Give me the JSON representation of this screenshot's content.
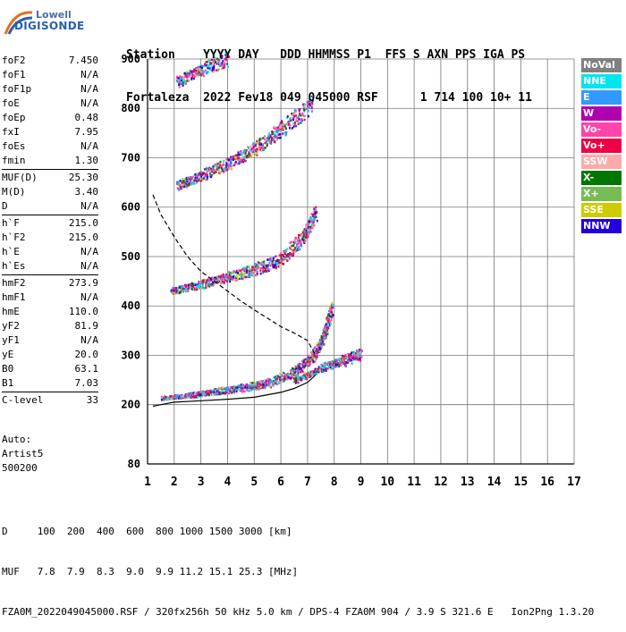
{
  "logo": {
    "line1": "Lowell",
    "line2": "DIGISONDE"
  },
  "header": {
    "line1": "Station    YYYY DAY   DDD HHMMSS P1  FFS S AXN PPS IGA PS",
    "line2": "Fortaleza  2022 Fev18 049 045000 RSF      1 714 100 10+ 11"
  },
  "params": [
    {
      "group": [
        {
          "k": "foF2",
          "v": "7.450"
        },
        {
          "k": "foF1",
          "v": "N/A"
        },
        {
          "k": "foF1p",
          "v": "N/A"
        },
        {
          "k": "foE",
          "v": "N/A"
        },
        {
          "k": "foEp",
          "v": "0.48"
        },
        {
          "k": "fxI",
          "v": "7.95"
        },
        {
          "k": "foEs",
          "v": "N/A"
        },
        {
          "k": "fmin",
          "v": "1.30"
        }
      ]
    },
    {
      "group": [
        {
          "k": "MUF(D)",
          "v": "25.30"
        },
        {
          "k": "M(D)",
          "v": "3.40"
        },
        {
          "k": "D",
          "v": "N/A"
        }
      ]
    },
    {
      "group": [
        {
          "k": "h`F",
          "v": "215.0"
        },
        {
          "k": "h`F2",
          "v": "215.0"
        },
        {
          "k": "h`E",
          "v": "N/A"
        },
        {
          "k": "h`Es",
          "v": "N/A"
        }
      ]
    },
    {
      "group": [
        {
          "k": "hmF2",
          "v": "273.9"
        },
        {
          "k": "hmF1",
          "v": "N/A"
        },
        {
          "k": "hmE",
          "v": "110.0"
        },
        {
          "k": "yF2",
          "v": "81.9"
        },
        {
          "k": "yF1",
          "v": "N/A"
        },
        {
          "k": "yE",
          "v": "20.0"
        },
        {
          "k": "B0",
          "v": "63.1"
        },
        {
          "k": "B1",
          "v": "7.03"
        }
      ]
    },
    {
      "group": [
        {
          "k": "C-level",
          "v": "33"
        }
      ]
    }
  ],
  "auto": {
    "line1": "Auto:",
    "line2": "Artist5",
    "line3": "500200"
  },
  "legend": [
    {
      "label": "NoVal",
      "color": "#808080"
    },
    {
      "label": "NNE",
      "color": "#00e5ee"
    },
    {
      "label": "E",
      "color": "#3399ff"
    },
    {
      "label": "W",
      "color": "#b000b0"
    },
    {
      "label": "Vo-",
      "color": "#ff44aa"
    },
    {
      "label": "Vo+",
      "color": "#ee0044"
    },
    {
      "label": "SSW",
      "color": "#ffaaaa"
    },
    {
      "label": "X-",
      "color": "#007700"
    },
    {
      "label": "X+",
      "color": "#77bb55"
    },
    {
      "label": "SSE",
      "color": "#cccc00"
    },
    {
      "label": "NNW",
      "color": "#2200dd"
    }
  ],
  "footer": {
    "line1": "D     100  200  400  600  800 1000 1500 3000 [km]",
    "line2": "MUF   7.8  7.9  8.3  9.0  9.9 11.2 15.1 25.3 [MHz]",
    "line3": "FZA0M_2022049045000.RSF / 320fx256h 50 kHz 5.0 km / DPS-4 FZA0M 904 / 3.9 S 321.6 E   Ion2Png 1.3.20"
  },
  "chart_data": {
    "type": "scatter",
    "xlim": [
      1,
      17
    ],
    "ylim": [
      80,
      900
    ],
    "x_ticks": [
      "1",
      "2",
      "3",
      "4",
      "5",
      "6",
      "7",
      "8",
      "9",
      "10",
      "11",
      "12",
      "13",
      "14",
      "15",
      "16",
      "17"
    ],
    "y_ticks": [
      "80",
      "200",
      "300",
      "400",
      "500",
      "600",
      "700",
      "800",
      "900"
    ],
    "grid": true,
    "traces": [
      {
        "name": "O-trace 1st hop",
        "points": [
          [
            1.5,
            215
          ],
          [
            2.5,
            220
          ],
          [
            3.5,
            228
          ],
          [
            4.5,
            235
          ],
          [
            5.5,
            245
          ],
          [
            6.5,
            268
          ],
          [
            7.2,
            300
          ],
          [
            7.6,
            340
          ],
          [
            7.9,
            400
          ]
        ]
      },
      {
        "name": "X-trace 1st hop",
        "points": [
          [
            6.5,
            250
          ],
          [
            7.5,
            275
          ],
          [
            8.3,
            290
          ],
          [
            9.0,
            305
          ]
        ]
      },
      {
        "name": "2nd hop",
        "points": [
          [
            1.9,
            432
          ],
          [
            3,
            445
          ],
          [
            4,
            460
          ],
          [
            5,
            475
          ],
          [
            6,
            495
          ],
          [
            6.8,
            540
          ],
          [
            7.3,
            590
          ]
        ]
      },
      {
        "name": "3rd hop",
        "points": [
          [
            2.1,
            645
          ],
          [
            3,
            665
          ],
          [
            4,
            690
          ],
          [
            5,
            720
          ],
          [
            6,
            760
          ],
          [
            7.2,
            810
          ]
        ]
      },
      {
        "name": "4th hop",
        "points": [
          [
            2.1,
            855
          ],
          [
            3,
            880
          ],
          [
            4,
            900
          ]
        ]
      }
    ],
    "profile_dashed": [
      [
        1.2,
        625
      ],
      [
        1.5,
        585
      ],
      [
        2,
        540
      ],
      [
        2.5,
        500
      ],
      [
        3,
        470
      ],
      [
        3.5,
        450
      ],
      [
        4,
        430
      ],
      [
        4.5,
        410
      ],
      [
        5,
        392
      ],
      [
        5.5,
        375
      ],
      [
        6,
        358
      ],
      [
        6.5,
        345
      ],
      [
        7,
        330
      ],
      [
        7.3,
        300
      ]
    ],
    "profile_solid": [
      [
        1.2,
        197
      ],
      [
        1.5,
        200
      ],
      [
        2,
        205
      ],
      [
        3,
        208
      ],
      [
        4,
        211
      ],
      [
        5,
        215
      ],
      [
        6,
        225
      ],
      [
        6.5,
        233
      ],
      [
        7,
        245
      ],
      [
        7.3,
        260
      ]
    ]
  }
}
